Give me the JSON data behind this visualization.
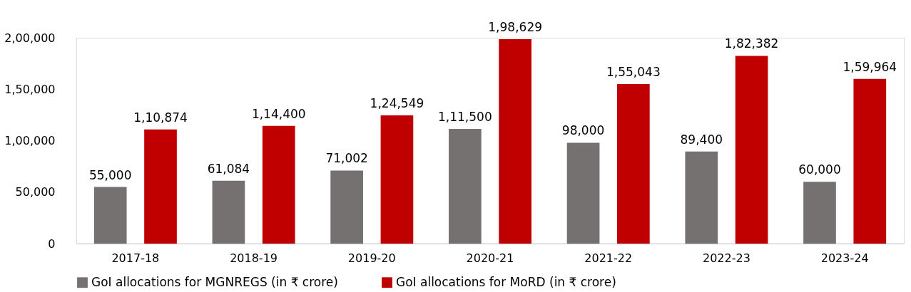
{
  "chart_data": {
    "type": "bar",
    "categories": [
      "2017-18",
      "2018-19",
      "2019-20",
      "2020-21",
      "2021-22",
      "2022-23",
      "2023-24"
    ],
    "series": [
      {
        "name": "GoI allocations for MGNREGS (in ₹ crore)",
        "color": "#767171",
        "values": [
          55000,
          61084,
          71002,
          111500,
          98000,
          89400,
          60000
        ],
        "value_labels": [
          "55,000",
          "61,084",
          "71,002",
          "1,11,500",
          "98,000",
          "89,400",
          "60,000"
        ]
      },
      {
        "name": "GoI allocations for MoRD (in ₹ crore)",
        "color": "#c00000",
        "values": [
          110874,
          114400,
          124549,
          198629,
          155043,
          182382,
          159964
        ],
        "value_labels": [
          "1,10,874",
          "1,14,400",
          "1,24,549",
          "1,98,629",
          "1,55,043",
          "1,82,382",
          "1,59,964"
        ]
      }
    ],
    "ylim": [
      0,
      200000
    ],
    "yticks": [
      {
        "value": 0,
        "label": "0"
      },
      {
        "value": 50000,
        "label": "50,000"
      },
      {
        "value": 100000,
        "label": "1,00,000"
      },
      {
        "value": 150000,
        "label": "1,50,000"
      },
      {
        "value": 200000,
        "label": "2,00,000"
      }
    ],
    "grid": false,
    "legend": "bottom"
  }
}
